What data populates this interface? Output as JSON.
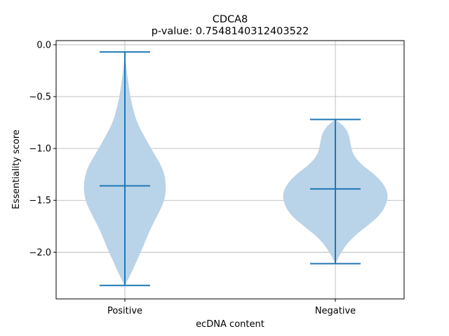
{
  "chart_data": {
    "type": "violin",
    "title": "CDCA8",
    "subtitle": "p-value: 0.7548140312403522",
    "xlabel": "ecDNA content",
    "ylabel": "Essentiality score",
    "categories": [
      "Positive",
      "Negative"
    ],
    "ylim": [
      -2.45,
      0.04
    ],
    "yticks": [
      0.0,
      -0.5,
      -1.0,
      -1.5,
      -2.0
    ],
    "ytick_labels": [
      "0.0",
      "−0.5",
      "−1.0",
      "−1.5",
      "−2.0"
    ],
    "grid": true,
    "series": [
      {
        "category": "Positive",
        "max": -0.07,
        "median": -1.36,
        "min": -2.32,
        "density": [
          [
            -2.32,
            0.0
          ],
          [
            -2.25,
            0.08
          ],
          [
            -2.1,
            0.22
          ],
          [
            -1.95,
            0.36
          ],
          [
            -1.8,
            0.48
          ],
          [
            -1.65,
            0.64
          ],
          [
            -1.5,
            0.79
          ],
          [
            -1.35,
            0.82
          ],
          [
            -1.2,
            0.76
          ],
          [
            -1.05,
            0.58
          ],
          [
            -0.9,
            0.4
          ],
          [
            -0.75,
            0.24
          ],
          [
            -0.6,
            0.15
          ],
          [
            -0.45,
            0.09
          ],
          [
            -0.3,
            0.05
          ],
          [
            -0.18,
            0.02
          ],
          [
            -0.07,
            0.0
          ]
        ]
      },
      {
        "category": "Negative",
        "max": -0.72,
        "median": -1.39,
        "min": -2.11,
        "density": [
          [
            -2.11,
            0.0
          ],
          [
            -2.05,
            0.06
          ],
          [
            -1.95,
            0.18
          ],
          [
            -1.85,
            0.36
          ],
          [
            -1.75,
            0.62
          ],
          [
            -1.65,
            0.87
          ],
          [
            -1.55,
            1.0
          ],
          [
            -1.45,
            1.05
          ],
          [
            -1.35,
            0.97
          ],
          [
            -1.25,
            0.78
          ],
          [
            -1.15,
            0.5
          ],
          [
            -1.05,
            0.34
          ],
          [
            -0.95,
            0.3
          ],
          [
            -0.85,
            0.26
          ],
          [
            -0.78,
            0.16
          ],
          [
            -0.72,
            0.0
          ]
        ]
      }
    ],
    "colors": {
      "fill": "#b9d3e8",
      "line": "#1f77b4",
      "grid": "#b0b0b0"
    }
  }
}
